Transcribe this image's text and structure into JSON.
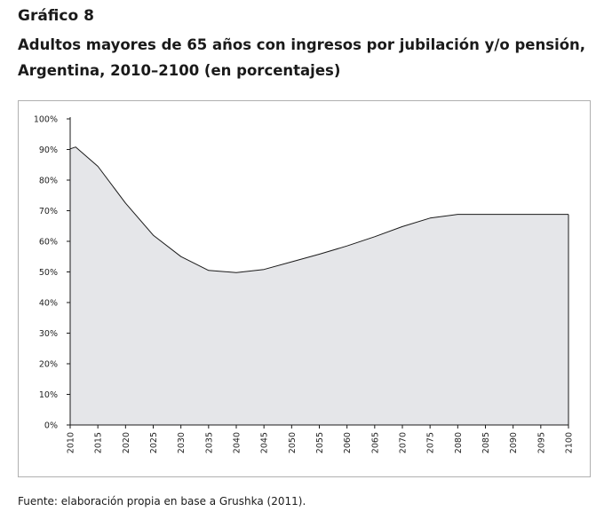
{
  "figure": {
    "label": "Gráfico 8",
    "title_lines": [
      "Adultos mayores de 65 años con ingresos por jubilación y/o pensión,",
      "Argentina, 2010–2100 (en porcentajes)"
    ],
    "source": "Fuente: elaboración propia en base a Grushka (2011)."
  },
  "chart_data": {
    "type": "area",
    "title": "",
    "xlabel": "",
    "ylabel": "",
    "x": [
      2010,
      2011,
      2015,
      2020,
      2025,
      2030,
      2035,
      2040,
      2045,
      2050,
      2055,
      2060,
      2065,
      2070,
      2075,
      2080,
      2085,
      2090,
      2095,
      2100
    ],
    "series": [
      {
        "values": [
          90.2,
          90.8,
          84.5,
          72.5,
          62.0,
          55.0,
          50.5,
          49.8,
          50.8,
          53.3,
          55.8,
          58.5,
          61.5,
          64.8,
          67.6,
          68.8,
          68.8,
          68.8,
          68.8,
          68.8
        ]
      }
    ],
    "xlim": [
      2010,
      2100
    ],
    "ylim": [
      0,
      100
    ],
    "x_ticks": [
      2010,
      2015,
      2020,
      2025,
      2030,
      2035,
      2040,
      2045,
      2050,
      2055,
      2060,
      2065,
      2070,
      2075,
      2080,
      2085,
      2090,
      2095,
      2100
    ],
    "x_tick_labels": [
      "2010",
      "2015",
      "2020",
      "2025",
      "2030",
      "2035",
      "2040",
      "2045",
      "2050",
      "2055",
      "2060",
      "2065",
      "2070",
      "2075",
      "2080",
      "2085",
      "2090",
      "2095",
      "2100"
    ],
    "y_ticks": [
      0,
      10,
      20,
      30,
      40,
      50,
      60,
      70,
      80,
      90,
      100
    ],
    "y_tick_labels": [
      "0%",
      "10%",
      "20%",
      "30%",
      "40%",
      "50%",
      "60%",
      "70%",
      "80%",
      "90%",
      "100%"
    ],
    "grid": false,
    "legend": "none",
    "colors": {
      "fill": "#e5e6e9",
      "line": "#1a1a1a",
      "axis": "#1a1a1a"
    }
  }
}
